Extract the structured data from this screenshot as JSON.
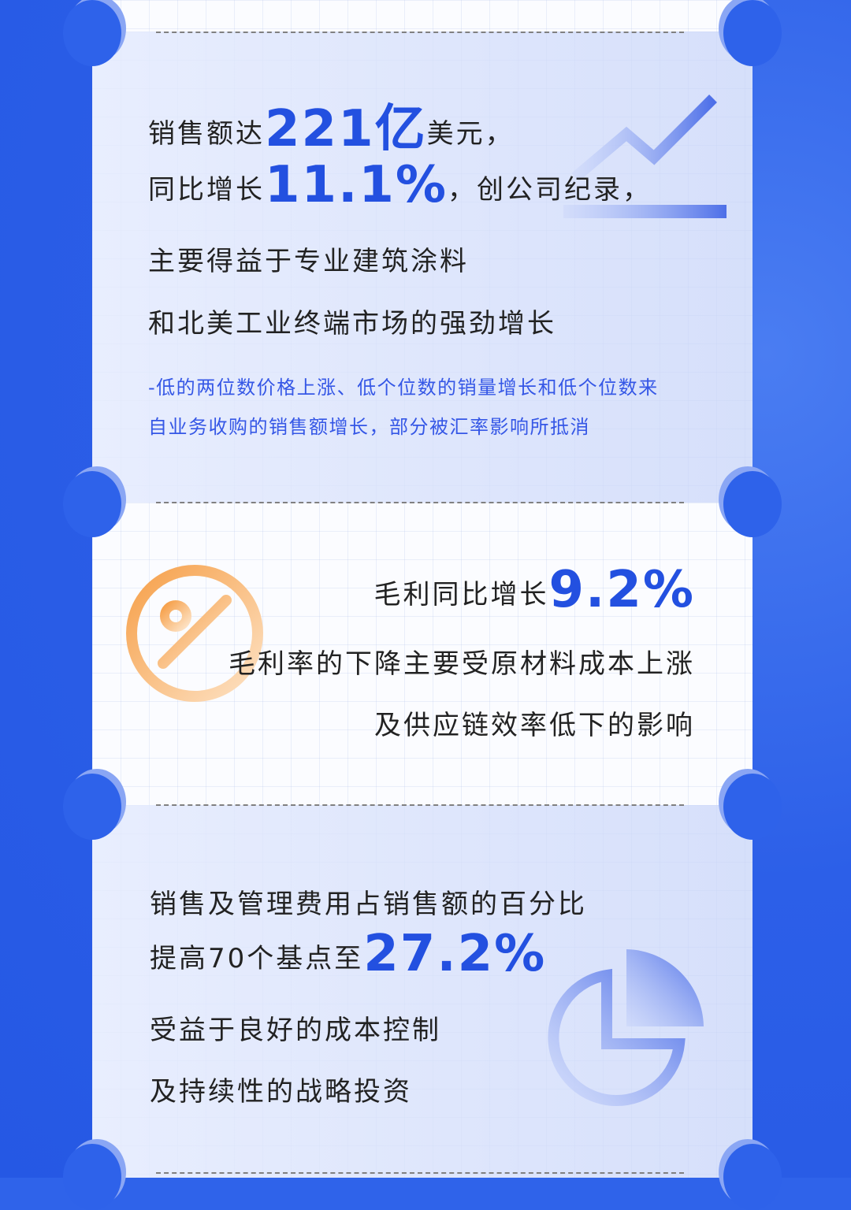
{
  "section1": {
    "line1_pre": "销售额达",
    "line1_big": "221亿",
    "line1_post": "美元，",
    "line2_pre": "同比增长",
    "line2_big": "11.1%",
    "line2_post": "，创公司纪录，",
    "line3": "主要得益于专业建筑涂料",
    "line4": "和北美工业终端市场的强劲增长",
    "note1": "-低的两位数价格上涨、低个位数的销量增长和低个位数来",
    "note2": "自业务收购的销售额增长，部分被汇率影响所抵消",
    "icon": "trend-up-icon"
  },
  "section2": {
    "line1_pre": "毛利同比增长",
    "line1_big": "9.2%",
    "line2": "毛利率的下降主要受原材料成本上涨",
    "line3": "及供应链效率低下的影响",
    "icon": "percent-icon"
  },
  "section3": {
    "line1": "销售及管理费用占销售额的百分比",
    "line2_pre": "提高70个基点至",
    "line2_big": "27.2%",
    "line3": "受益于良好的成本控制",
    "line4": "及持续性的战略投资",
    "icon": "pie-chart-icon"
  },
  "colors": {
    "accent": "#2350e0",
    "background": "#2f63ea",
    "orange": "#f6a04a"
  }
}
